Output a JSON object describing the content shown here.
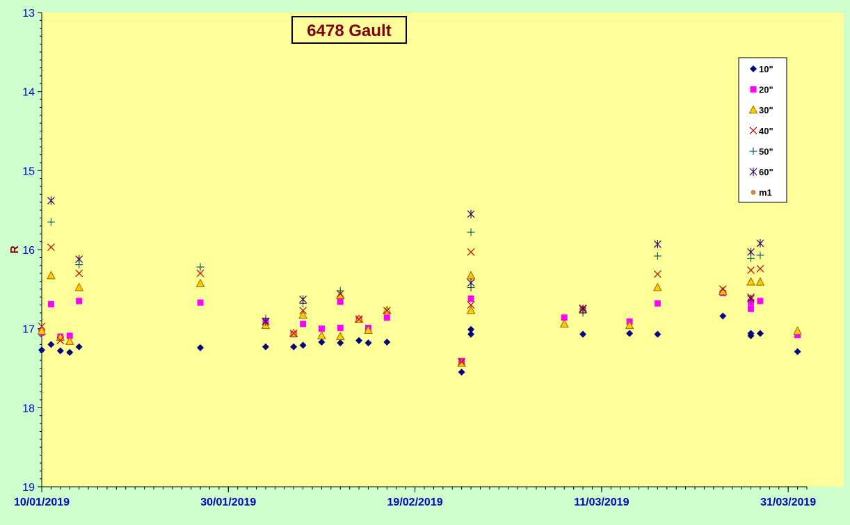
{
  "chart_data": {
    "type": "scatter",
    "title": "6478 Gault",
    "xlabel": "",
    "ylabel": "R",
    "ylim": [
      13,
      19
    ],
    "y_inverted": true,
    "y_ticks": [
      "13",
      "14",
      "15",
      "16",
      "17",
      "18",
      "19"
    ],
    "x_range": [
      "2019-01-10",
      "2019-04-02"
    ],
    "x_ticks": [
      {
        "date": "2019-01-10",
        "label": "10/01/2019"
      },
      {
        "date": "2019-01-30",
        "label": "30/01/2019"
      },
      {
        "date": "2019-02-19",
        "label": "19/02/2019"
      },
      {
        "date": "2019-03-11",
        "label": "11/03/2019"
      },
      {
        "date": "2019-03-31",
        "label": "31/03/2019"
      }
    ],
    "grid": false,
    "legend_position": "top-right",
    "colors": {
      "plot_background": "#ffff99",
      "page_background": "#ccffcc",
      "axis_text": "#0000cc",
      "title_text": "#800000",
      "ylabel_text": "#800000"
    },
    "series": [
      {
        "name": "10\"",
        "marker": "diamond",
        "color": "#000080",
        "points": [
          [
            "2019-01-10",
            17.27
          ],
          [
            "2019-01-11",
            17.2
          ],
          [
            "2019-01-12",
            17.28
          ],
          [
            "2019-01-13",
            17.3
          ],
          [
            "2019-01-14",
            17.23
          ],
          [
            "2019-01-27",
            17.24
          ],
          [
            "2019-02-03",
            17.23
          ],
          [
            "2019-02-06",
            17.23
          ],
          [
            "2019-02-07",
            17.21
          ],
          [
            "2019-02-09",
            17.17
          ],
          [
            "2019-02-11",
            17.18
          ],
          [
            "2019-02-13",
            17.15
          ],
          [
            "2019-02-14",
            17.18
          ],
          [
            "2019-02-16",
            17.17
          ],
          [
            "2019-02-24",
            17.55
          ],
          [
            "2019-02-25",
            17.07
          ],
          [
            "2019-02-25",
            17.01
          ],
          [
            "2019-03-09",
            17.07
          ],
          [
            "2019-03-14",
            17.06
          ],
          [
            "2019-03-17",
            17.07
          ],
          [
            "2019-03-24",
            16.84
          ],
          [
            "2019-03-27",
            17.06
          ],
          [
            "2019-03-27",
            17.09
          ],
          [
            "2019-03-28",
            17.06
          ],
          [
            "2019-04-01",
            17.29
          ]
        ]
      },
      {
        "name": "20\"",
        "marker": "square",
        "color": "#ff00ff",
        "points": [
          [
            "2019-01-10",
            17.05
          ],
          [
            "2019-01-11",
            16.69
          ],
          [
            "2019-01-12",
            17.1
          ],
          [
            "2019-01-13",
            17.09
          ],
          [
            "2019-01-14",
            16.65
          ],
          [
            "2019-01-27",
            16.67
          ],
          [
            "2019-02-03",
            16.9
          ],
          [
            "2019-02-06",
            17.07
          ],
          [
            "2019-02-07",
            16.94
          ],
          [
            "2019-02-09",
            17.0
          ],
          [
            "2019-02-11",
            16.66
          ],
          [
            "2019-02-11",
            16.99
          ],
          [
            "2019-02-13",
            16.88
          ],
          [
            "2019-02-14",
            16.99
          ],
          [
            "2019-02-16",
            16.86
          ],
          [
            "2019-02-24",
            17.41
          ],
          [
            "2019-02-25",
            16.62
          ],
          [
            "2019-03-07",
            16.86
          ],
          [
            "2019-03-09",
            16.77
          ],
          [
            "2019-03-14",
            16.91
          ],
          [
            "2019-03-17",
            16.68
          ],
          [
            "2019-03-24",
            16.55
          ],
          [
            "2019-03-27",
            16.75
          ],
          [
            "2019-03-27",
            16.67
          ],
          [
            "2019-03-28",
            16.65
          ],
          [
            "2019-04-01",
            17.08
          ]
        ]
      },
      {
        "name": "30\"",
        "marker": "triangle",
        "color": "#ffcc00",
        "stroke": "#996600",
        "points": [
          [
            "2019-01-10",
            17.03
          ],
          [
            "2019-01-11",
            16.33
          ],
          [
            "2019-01-12",
            17.11
          ],
          [
            "2019-01-13",
            17.16
          ],
          [
            "2019-01-14",
            16.48
          ],
          [
            "2019-01-27",
            16.43
          ],
          [
            "2019-02-03",
            16.96
          ],
          [
            "2019-02-06",
            17.06
          ],
          [
            "2019-02-07",
            16.83
          ],
          [
            "2019-02-09",
            17.09
          ],
          [
            "2019-02-11",
            16.58
          ],
          [
            "2019-02-11",
            17.1
          ],
          [
            "2019-02-13",
            16.88
          ],
          [
            "2019-02-14",
            17.02
          ],
          [
            "2019-02-16",
            16.77
          ],
          [
            "2019-02-24",
            17.44
          ],
          [
            "2019-02-25",
            16.33
          ],
          [
            "2019-02-25",
            16.77
          ],
          [
            "2019-03-07",
            16.94
          ],
          [
            "2019-03-09",
            16.76
          ],
          [
            "2019-03-14",
            16.96
          ],
          [
            "2019-03-17",
            16.48
          ],
          [
            "2019-03-24",
            16.53
          ],
          [
            "2019-03-27",
            16.41
          ],
          [
            "2019-03-28",
            16.41
          ],
          [
            "2019-04-01",
            17.03
          ]
        ]
      },
      {
        "name": "40\"",
        "marker": "x",
        "color": "#cc0000",
        "points": [
          [
            "2019-01-10",
            16.97
          ],
          [
            "2019-01-11",
            15.97
          ],
          [
            "2019-01-12",
            17.15
          ],
          [
            "2019-01-14",
            16.3
          ],
          [
            "2019-01-27",
            16.3
          ],
          [
            "2019-02-03",
            16.91
          ],
          [
            "2019-02-06",
            17.06
          ],
          [
            "2019-02-07",
            16.77
          ],
          [
            "2019-02-11",
            16.56
          ],
          [
            "2019-02-13",
            16.88
          ],
          [
            "2019-02-16",
            16.77
          ],
          [
            "2019-02-24",
            17.42
          ],
          [
            "2019-02-25",
            16.03
          ],
          [
            "2019-02-25",
            16.7
          ],
          [
            "2019-03-09",
            16.74
          ],
          [
            "2019-03-17",
            16.31
          ],
          [
            "2019-03-24",
            16.5
          ],
          [
            "2019-03-27",
            16.26
          ],
          [
            "2019-03-27",
            16.6
          ],
          [
            "2019-03-28",
            16.24
          ]
        ]
      },
      {
        "name": "50\"",
        "marker": "plus",
        "color": "#006666",
        "points": [
          [
            "2019-01-11",
            15.65
          ],
          [
            "2019-01-14",
            16.19
          ],
          [
            "2019-01-27",
            16.22
          ],
          [
            "2019-02-03",
            16.87
          ],
          [
            "2019-02-07",
            16.68
          ],
          [
            "2019-02-11",
            16.52
          ],
          [
            "2019-02-25",
            15.78
          ],
          [
            "2019-02-25",
            16.48
          ],
          [
            "2019-03-09",
            16.8
          ],
          [
            "2019-03-17",
            16.08
          ],
          [
            "2019-03-27",
            16.11
          ],
          [
            "2019-03-28",
            16.07
          ]
        ]
      },
      {
        "name": "60\"",
        "marker": "star",
        "color": "#330066",
        "points": [
          [
            "2019-01-11",
            15.38
          ],
          [
            "2019-01-14",
            16.12
          ],
          [
            "2019-02-03",
            16.91
          ],
          [
            "2019-02-07",
            16.63
          ],
          [
            "2019-02-25",
            15.55
          ],
          [
            "2019-02-25",
            16.42
          ],
          [
            "2019-03-09",
            16.75
          ],
          [
            "2019-03-17",
            15.93
          ],
          [
            "2019-03-27",
            16.03
          ],
          [
            "2019-03-27",
            16.62
          ],
          [
            "2019-03-28",
            15.92
          ]
        ]
      },
      {
        "name": "m1",
        "marker": "circle",
        "color": "#cc8844",
        "points": []
      }
    ]
  }
}
